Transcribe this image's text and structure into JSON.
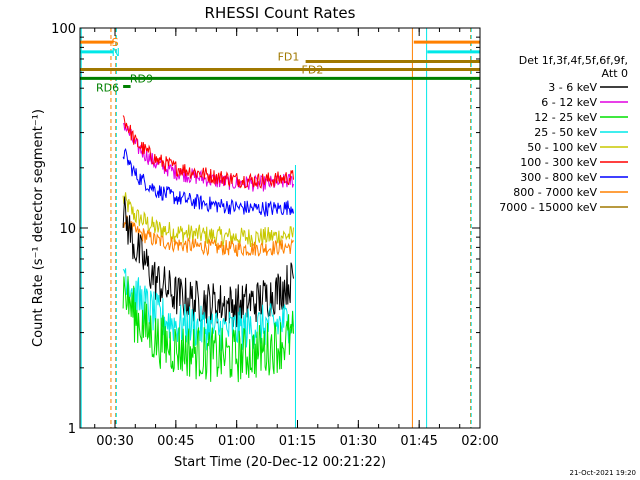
{
  "chart_data": {
    "type": "line",
    "title": "RHESSI Count Rates",
    "xlabel": "Start Time (20-Dec-12 00:21:22)",
    "ylabel": "Count Rate (s⁻¹ detector segment⁻¹)",
    "footer": "21-Oct-2021 19:20",
    "y_scale": "log",
    "ylim": [
      1,
      100
    ],
    "xlim": [
      "00:21:22",
      "02:00:00"
    ],
    "x_ticks": [
      "00:30",
      "00:45",
      "01:00",
      "01:15",
      "01:30",
      "01:45",
      "02:00"
    ],
    "y_ticks": [
      "1",
      "10",
      "100"
    ],
    "legend": {
      "header_line1": "Det 1f,3f,4f,5f,6f,9f,",
      "header_line2": "Att 0",
      "placement": "right"
    },
    "series": [
      {
        "name": "3 - 6 keV",
        "color": "#000000",
        "x": [
          "00:32",
          "00:35",
          "00:40",
          "00:45",
          "00:50",
          "00:55",
          "01:00",
          "01:05",
          "01:10",
          "01:14"
        ],
        "values": [
          12.0,
          8.0,
          5.5,
          4.6,
          4.3,
          4.2,
          4.1,
          4.3,
          4.8,
          5.5
        ]
      },
      {
        "name": "6 - 12 keV",
        "color": "#e000e0",
        "x": [
          "00:32",
          "00:35",
          "00:40",
          "00:45",
          "00:50",
          "00:55",
          "01:00",
          "01:05",
          "01:10",
          "01:14"
        ],
        "values": [
          34.0,
          26.0,
          21.0,
          19.0,
          18.0,
          17.2,
          16.8,
          16.6,
          16.8,
          17.3
        ]
      },
      {
        "name": "12 - 25 keV",
        "color": "#00e000",
        "x": [
          "00:32",
          "00:35",
          "00:40",
          "00:45",
          "00:50",
          "00:55",
          "01:00",
          "01:05",
          "01:10",
          "01:14"
        ],
        "values": [
          5.0,
          3.6,
          2.8,
          2.5,
          2.4,
          2.3,
          2.3,
          2.4,
          2.6,
          2.9
        ]
      },
      {
        "name": "25 - 50 keV",
        "color": "#00e8e8",
        "x": [
          "00:32",
          "00:35",
          "00:40",
          "00:45",
          "00:50",
          "00:55",
          "01:00",
          "01:05",
          "01:10",
          "01:14"
        ],
        "values": [
          6.5,
          4.6,
          3.7,
          3.3,
          3.2,
          3.1,
          3.1,
          3.2,
          3.3,
          3.5
        ]
      },
      {
        "name": "50 - 100 keV",
        "color": "#c8c800",
        "x": [
          "00:32",
          "00:35",
          "00:40",
          "00:45",
          "00:50",
          "00:55",
          "01:00",
          "01:05",
          "01:10",
          "01:14"
        ],
        "values": [
          14.0,
          11.5,
          10.0,
          9.5,
          9.3,
          9.1,
          9.0,
          9.0,
          9.1,
          9.2
        ]
      },
      {
        "name": "100 - 300 keV",
        "color": "#ff0000",
        "x": [
          "00:32",
          "00:35",
          "00:40",
          "00:45",
          "00:50",
          "00:55",
          "01:00",
          "01:05",
          "01:10",
          "01:14"
        ],
        "values": [
          36.0,
          27.0,
          22.0,
          20.0,
          19.0,
          18.0,
          17.5,
          17.3,
          17.5,
          18.0
        ]
      },
      {
        "name": "300 - 800 keV",
        "color": "#0000ff",
        "x": [
          "00:32",
          "00:35",
          "00:40",
          "00:45",
          "00:50",
          "00:55",
          "01:00",
          "01:05",
          "01:10",
          "01:14"
        ],
        "values": [
          24.0,
          18.5,
          15.5,
          14.2,
          13.5,
          13.0,
          12.7,
          12.5,
          12.5,
          12.8
        ]
      },
      {
        "name": "800 - 7000 keV",
        "color": "#ff8000",
        "x": [
          "00:32",
          "00:35",
          "00:40",
          "00:45",
          "00:50",
          "00:55",
          "01:00",
          "01:05",
          "01:10",
          "01:14"
        ],
        "values": [
          11.0,
          9.6,
          8.7,
          8.3,
          8.1,
          8.0,
          7.9,
          7.9,
          8.0,
          8.1
        ]
      },
      {
        "name": "7000 - 15000 keV",
        "color": "#a07800",
        "x": [],
        "values": []
      }
    ],
    "flag_bars": [
      {
        "label": "S",
        "color": "#ff8000",
        "segments": [
          [
            "00:21:22",
            "00:29:40"
          ],
          [
            "01:43:40",
            "02:00:00"
          ]
        ],
        "level": 85
      },
      {
        "label": "N",
        "color": "#00e8e8",
        "segments": [
          [
            "00:21:22",
            "00:29:40"
          ],
          [
            "01:47:00",
            "02:00:00"
          ]
        ],
        "level": 76
      },
      {
        "label": "FD1",
        "color": "#a07800",
        "segments": [
          [
            "01:17:00",
            "02:00:00"
          ]
        ],
        "level": 68
      },
      {
        "label": "FD2",
        "color": "#a07800",
        "segments": [
          [
            "00:21:22",
            "02:00:00"
          ]
        ],
        "level": 62
      },
      {
        "label": "RD9",
        "color": "#008000",
        "segments": [
          [
            "00:21:22",
            "02:00:00"
          ]
        ],
        "level": 56
      },
      {
        "label": "RD6",
        "color": "#008000",
        "segments": [
          [
            "00:32:00",
            "00:33:50"
          ]
        ],
        "level": 51
      }
    ],
    "vertical_markers": [
      {
        "time": "00:21:40",
        "color": "#00e8e8",
        "style": "solid"
      },
      {
        "time": "00:29:00",
        "color": "#ff8000",
        "style": "dashed"
      },
      {
        "time": "00:30:10",
        "color": "#ff8000",
        "style": "dashed"
      },
      {
        "time": "00:30:20",
        "color": "#00e8e8",
        "style": "dashed"
      },
      {
        "time": "01:14:30",
        "color": "#00e8e8",
        "style": "solid"
      },
      {
        "time": "01:43:20",
        "color": "#ff8000",
        "style": "solid"
      },
      {
        "time": "01:46:50",
        "color": "#00e8e8",
        "style": "solid"
      },
      {
        "time": "01:57:40",
        "color": "#ff8000",
        "style": "dashed"
      },
      {
        "time": "01:57:50",
        "color": "#00e8e8",
        "style": "dashed"
      }
    ]
  }
}
